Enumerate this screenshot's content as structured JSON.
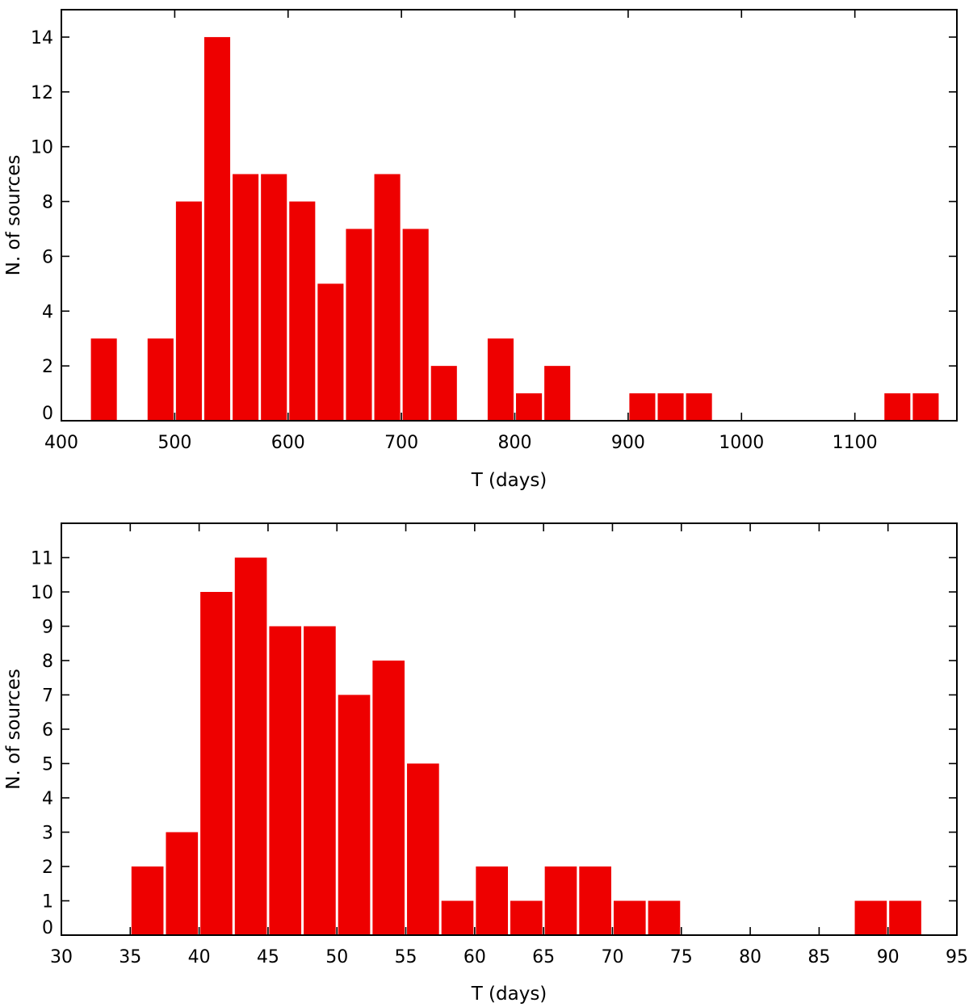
{
  "chart_data": [
    {
      "type": "bar",
      "title": "",
      "xlabel": "T (days)",
      "ylabel": "N. of sources",
      "xlim": [
        400,
        1190
      ],
      "ylim": [
        0,
        15
      ],
      "bin_width": 25,
      "bar_color": "#ee0000",
      "x_ticks": [
        400,
        500,
        600,
        700,
        800,
        900,
        1000,
        1100
      ],
      "x_tick_labels": [
        "400",
        "500",
        "600",
        "700",
        "800",
        "900",
        "1000",
        "1100"
      ],
      "y_ticks": [
        0,
        2,
        4,
        6,
        8,
        10,
        12,
        14
      ],
      "y_tick_labels": [
        "0",
        "2",
        "4",
        "6",
        "8",
        "10",
        "12",
        "14"
      ],
      "bins": [
        {
          "start": 425,
          "end": 450,
          "count": 3
        },
        {
          "start": 475,
          "end": 500,
          "count": 3
        },
        {
          "start": 500,
          "end": 525,
          "count": 8
        },
        {
          "start": 525,
          "end": 550,
          "count": 14
        },
        {
          "start": 550,
          "end": 575,
          "count": 9
        },
        {
          "start": 575,
          "end": 600,
          "count": 9
        },
        {
          "start": 600,
          "end": 625,
          "count": 8
        },
        {
          "start": 625,
          "end": 650,
          "count": 5
        },
        {
          "start": 650,
          "end": 675,
          "count": 7
        },
        {
          "start": 675,
          "end": 700,
          "count": 9
        },
        {
          "start": 700,
          "end": 725,
          "count": 7
        },
        {
          "start": 725,
          "end": 750,
          "count": 2
        },
        {
          "start": 775,
          "end": 800,
          "count": 3
        },
        {
          "start": 800,
          "end": 825,
          "count": 1
        },
        {
          "start": 825,
          "end": 850,
          "count": 2
        },
        {
          "start": 900,
          "end": 925,
          "count": 1
        },
        {
          "start": 925,
          "end": 950,
          "count": 1
        },
        {
          "start": 950,
          "end": 975,
          "count": 1
        },
        {
          "start": 1125,
          "end": 1150,
          "count": 1
        },
        {
          "start": 1150,
          "end": 1175,
          "count": 1
        }
      ]
    },
    {
      "type": "bar",
      "title": "",
      "xlabel": "T (days)",
      "ylabel": "N. of sources",
      "xlim": [
        30,
        95
      ],
      "ylim": [
        0,
        12
      ],
      "bin_width": 2.5,
      "bar_color": "#ee0000",
      "x_ticks": [
        30,
        35,
        40,
        45,
        50,
        55,
        60,
        65,
        70,
        75,
        80,
        85,
        90,
        95
      ],
      "x_tick_labels": [
        "30",
        "35",
        "40",
        "45",
        "50",
        "55",
        "60",
        "65",
        "70",
        "75",
        "80",
        "85",
        "90",
        "95"
      ],
      "y_ticks": [
        0,
        1,
        2,
        3,
        4,
        5,
        6,
        7,
        8,
        9,
        10,
        11
      ],
      "y_tick_labels": [
        "0",
        "1",
        "2",
        "3",
        "4",
        "5",
        "6",
        "7",
        "8",
        "9",
        "10",
        "11"
      ],
      "bins": [
        {
          "start": 35,
          "end": 37.5,
          "count": 2
        },
        {
          "start": 37.5,
          "end": 40,
          "count": 3
        },
        {
          "start": 40,
          "end": 42.5,
          "count": 10
        },
        {
          "start": 42.5,
          "end": 45,
          "count": 11
        },
        {
          "start": 45,
          "end": 47.5,
          "count": 9
        },
        {
          "start": 47.5,
          "end": 50,
          "count": 9
        },
        {
          "start": 50,
          "end": 52.5,
          "count": 7
        },
        {
          "start": 52.5,
          "end": 55,
          "count": 8
        },
        {
          "start": 55,
          "end": 57.5,
          "count": 5
        },
        {
          "start": 57.5,
          "end": 60,
          "count": 1
        },
        {
          "start": 60,
          "end": 62.5,
          "count": 2
        },
        {
          "start": 62.5,
          "end": 65,
          "count": 1
        },
        {
          "start": 65,
          "end": 67.5,
          "count": 2
        },
        {
          "start": 67.5,
          "end": 70,
          "count": 2
        },
        {
          "start": 70,
          "end": 72.5,
          "count": 1
        },
        {
          "start": 72.5,
          "end": 75,
          "count": 1
        },
        {
          "start": 87.5,
          "end": 90,
          "count": 1
        },
        {
          "start": 90,
          "end": 92.5,
          "count": 1
        }
      ]
    }
  ]
}
